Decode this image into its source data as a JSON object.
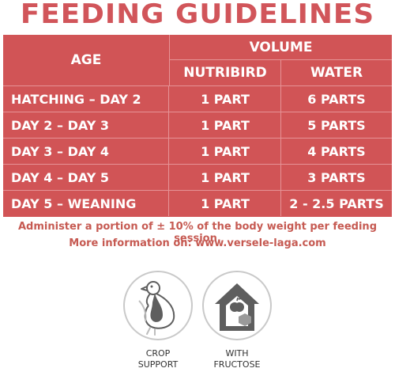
{
  "title": "FEEDING GUIDELINES",
  "table": {
    "header_age": "AGE",
    "header_volume": "VOLUME",
    "header_nutribird": "NUTRIBIRD",
    "header_water": "WATER",
    "rows": [
      {
        "age": "HATCHING – DAY 2",
        "nutribird": "1 PART",
        "water": "6 PARTS"
      },
      {
        "age": "DAY 2 – DAY 3",
        "nutribird": "1 PART",
        "water": "5 PARTS"
      },
      {
        "age": "DAY 3 – DAY 4",
        "nutribird": "1 PART",
        "water": "4 PARTS"
      },
      {
        "age": "DAY 4 – DAY 5",
        "nutribird": "1 PART",
        "water": "3 PARTS"
      },
      {
        "age": "DAY 5 – WEANING",
        "nutribird": "1 PART",
        "water": "2 - 2.5 PARTS"
      }
    ]
  },
  "notes": {
    "line1": "Administer a portion of ± 10% of the body weight per feeding session.",
    "line2": "More information on: www.versele-laga.com"
  },
  "badges": [
    {
      "icon": "crop-support-icon",
      "caption_line1": "CROP",
      "caption_line2": "SUPPORT"
    },
    {
      "icon": "fructose-house-icon",
      "caption_line1": "WITH",
      "caption_line2": "FRUCTOSE"
    }
  ],
  "colors": {
    "brand_red": "#d15456",
    "title_red": "#d1555a",
    "icon_gray": "#5e5e5e"
  }
}
